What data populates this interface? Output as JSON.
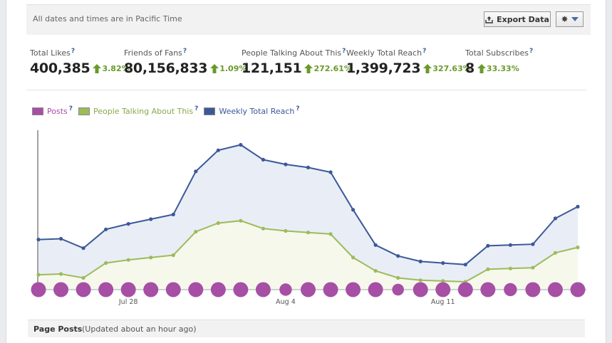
{
  "header": {
    "timezone_note": "All dates and times are in Pacific Time",
    "export_label": "Export Data"
  },
  "metrics": [
    {
      "label": "Total Likes",
      "value": "400,385",
      "change": "3.82%"
    },
    {
      "label": "Friends of Fans",
      "value": "80,156,833",
      "change": "1.09%"
    },
    {
      "label": "People Talking About This",
      "value": "121,151",
      "change": "272.61%"
    },
    {
      "label": "Weekly Total Reach",
      "value": "1,399,723",
      "change": "327.63%"
    },
    {
      "label": "Total Subscribes",
      "value": "8",
      "change": "33.33%"
    }
  ],
  "help_mark": "?",
  "legend": [
    {
      "label": "Posts",
      "color": "#a64fa5"
    },
    {
      "label": "People Talking About This",
      "color": "#9dbb5a"
    },
    {
      "label": "Weekly Total Reach",
      "color": "#3b5998"
    }
  ],
  "chart_data": {
    "type": "line",
    "x_tick_labels": [
      "Jul 28",
      "Aug 4",
      "Aug 11"
    ],
    "x_tick_indices": [
      4,
      11,
      18
    ],
    "series": [
      {
        "name": "Weekly Total Reach",
        "color": "#3b5998",
        "values": [
          0.32,
          0.325,
          0.265,
          0.385,
          0.42,
          0.45,
          0.48,
          0.755,
          0.89,
          0.925,
          0.83,
          0.8,
          0.78,
          0.75,
          0.51,
          0.285,
          0.215,
          0.18,
          0.17,
          0.16,
          0.28,
          0.285,
          0.29,
          0.455,
          0.53
        ]
      },
      {
        "name": "People Talking About This",
        "color": "#9dbb5a",
        "values": [
          0.095,
          0.1,
          0.075,
          0.17,
          0.19,
          0.205,
          0.22,
          0.37,
          0.425,
          0.44,
          0.39,
          0.375,
          0.365,
          0.355,
          0.205,
          0.12,
          0.075,
          0.06,
          0.055,
          0.05,
          0.13,
          0.135,
          0.14,
          0.235,
          0.27
        ]
      }
    ],
    "posts": {
      "name": "Posts",
      "color": "#a64fa5",
      "counts": [
        1,
        1,
        1,
        1,
        1,
        1,
        1,
        1,
        1,
        1,
        1,
        0.6,
        1,
        1,
        1,
        1,
        0.5,
        1,
        1,
        1,
        1,
        0.7,
        1,
        1,
        1
      ]
    },
    "ylim": [
      0,
      1
    ]
  },
  "footer": {
    "title": "Page Posts",
    "subtitle": "(Updated about an hour ago)"
  }
}
